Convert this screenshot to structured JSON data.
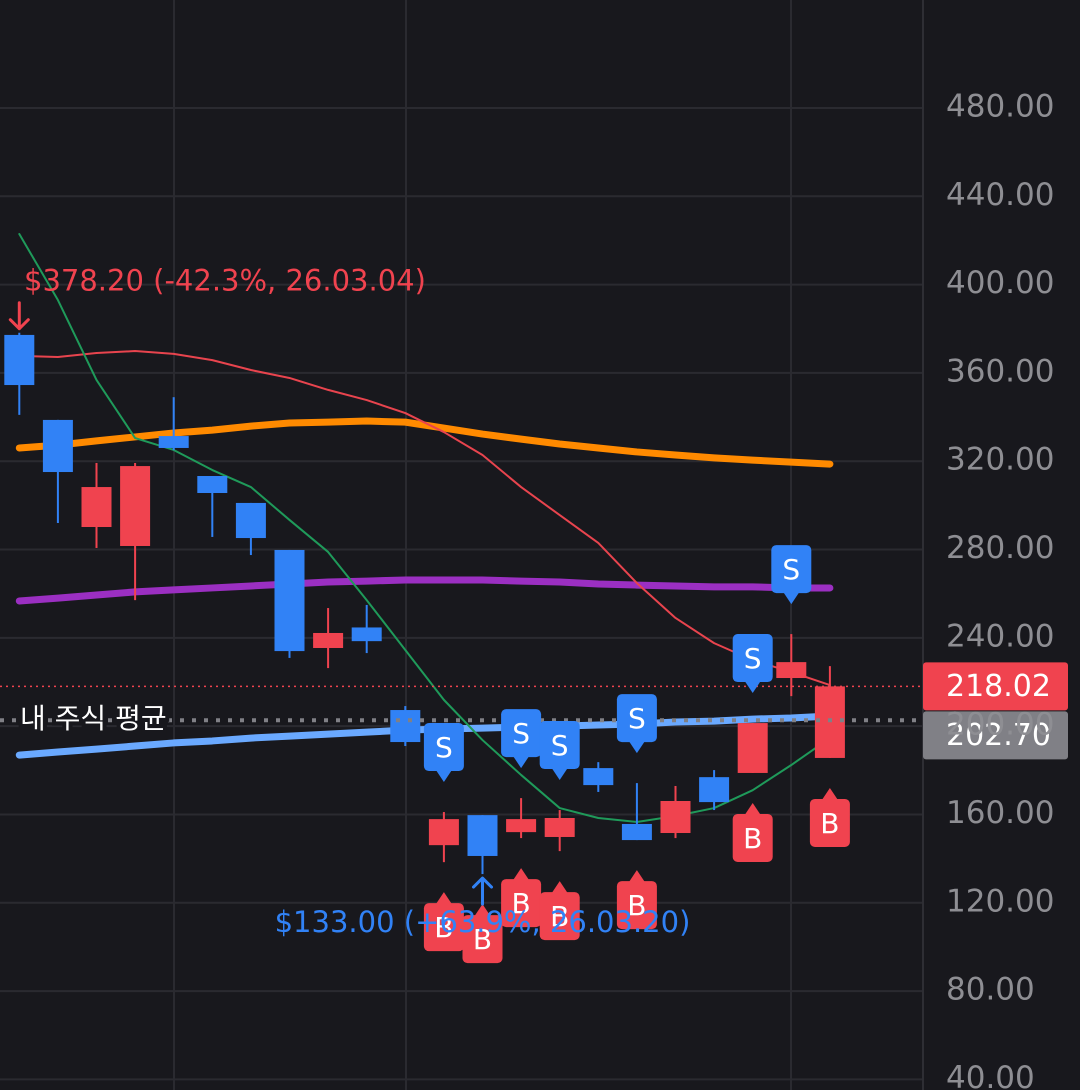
{
  "chart_data": {
    "type": "candlestick",
    "categories": [
      null,
      null,
      null,
      null,
      null,
      null,
      null,
      null,
      null,
      null,
      null,
      null,
      null,
      null,
      null,
      null,
      null,
      null,
      null,
      null,
      null,
      null
    ],
    "open": [
      377.2,
      338.7,
      290.2,
      281.6,
      331.4,
      313.3,
      301.1,
      279.8,
      235.4,
      244.7,
      207.3,
      146.1,
      159.7,
      152,
      149.8,
      181,
      155.7,
      151.6,
      176.9,
      178.8,
      221.8,
      185.6
    ],
    "high": [
      378.2,
      338.7,
      319.2,
      319.2,
      349,
      313.3,
      301.1,
      279.8,
      253.5,
      254.9,
      209.1,
      161.1,
      159.7,
      167.4,
      162,
      183.7,
      174.2,
      172.9,
      180.1,
      201.4,
      241.7,
      227.2
    ],
    "low": [
      341,
      292,
      280.7,
      257.1,
      325,
      285.7,
      277.5,
      230.9,
      226.3,
      233.1,
      191,
      138.4,
      133,
      149.3,
      143.4,
      170.2,
      148.4,
      149.3,
      162,
      178.8,
      213.6,
      185.6
    ],
    "close": [
      354.5,
      315.1,
      308.3,
      317.8,
      326,
      305.6,
      285.2,
      234,
      242.2,
      238.5,
      192.8,
      157.9,
      141.2,
      157.9,
      158.4,
      173.3,
      148.4,
      166.1,
      165.6,
      201.4,
      229,
      218.02
    ],
    "up_color": "#f0434f",
    "down_color": "#3182f6",
    "lines": [
      {
        "color": "#ff8a00",
        "width": 7,
        "values": [
          326,
          327.3,
          329.2,
          331,
          332.8,
          334.1,
          335.9,
          337.3,
          337.7,
          338.2,
          337.7,
          335,
          332.3,
          330,
          327.8,
          326,
          324.2,
          322.8,
          321.5,
          320.5,
          319.6,
          318.7
        ]
      },
      {
        "color": "#9b2fc2",
        "width": 7,
        "values": [
          256.7,
          258,
          259.4,
          260.8,
          261.7,
          262.6,
          263.5,
          264.4,
          265.3,
          265.7,
          266.2,
          266.2,
          266.2,
          265.7,
          265.3,
          264.4,
          263.9,
          263.5,
          263.1,
          263.1,
          262.6,
          262.6
        ]
      },
      {
        "color": "#6aa9ff",
        "width": 7,
        "values": [
          186.9,
          188.3,
          189.6,
          191,
          192.4,
          193.3,
          194.6,
          195.5,
          196.4,
          197.3,
          198.2,
          198.7,
          199.1,
          199.6,
          200,
          200.5,
          201,
          201.9,
          202.3,
          203.2,
          203.7,
          204.6
        ]
      },
      {
        "color": "#e8444e",
        "width": 2,
        "values": [
          367.7,
          367.2,
          369,
          369.9,
          368.6,
          365.8,
          361.3,
          357.7,
          352.3,
          347.7,
          341.8,
          333.2,
          322.8,
          308.3,
          295.6,
          283,
          264.8,
          249,
          237.6,
          229.9,
          224.5,
          218.6
        ]
      },
      {
        "color": "#1f9a5a",
        "width": 2,
        "values": [
          422.9,
          393,
          356.8,
          330.5,
          325.1,
          316,
          308.3,
          293.4,
          278.9,
          257.1,
          234.5,
          211.9,
          193.7,
          177.9,
          162.9,
          158.4,
          156.6,
          159.3,
          162.9,
          171,
          182.4,
          194.6
        ]
      }
    ],
    "ylim": [
      35.2,
      528.9
    ],
    "yticks": [
      {
        "value": 40,
        "label": "40.00"
      },
      {
        "value": 80,
        "label": "80.00"
      },
      {
        "value": 120,
        "label": "120.00"
      },
      {
        "value": 160,
        "label": "160.00"
      },
      {
        "value": 200,
        "label": "200.00"
      },
      {
        "value": 240,
        "label": "240.00"
      },
      {
        "value": 280,
        "label": "280.00"
      },
      {
        "value": 320,
        "label": "320.00"
      },
      {
        "value": 360,
        "label": "360.00"
      },
      {
        "value": 400,
        "label": "400.00"
      },
      {
        "value": 440,
        "label": "440.00"
      },
      {
        "value": 480,
        "label": "480.00"
      }
    ],
    "grid": true,
    "signals": {
      "sell": {
        "label": "S",
        "color": "#3182f6",
        "at": [
          11,
          13,
          14,
          16,
          19,
          20
        ]
      },
      "buy": {
        "label": "B",
        "color": "#f0434f",
        "at": [
          11,
          12,
          13,
          14,
          16,
          19,
          21
        ]
      }
    },
    "annotations": [
      {
        "text": "$378.20 (-42.3%, 26.03.04)",
        "index": 0,
        "at": "high",
        "color": "#f0434f"
      },
      {
        "text": "$133.00 (+63.9%, 26.03.20)",
        "index": 12,
        "at": "low",
        "color": "#3182f6"
      }
    ],
    "price_lines": [
      {
        "value": 218.02,
        "label": "218.02",
        "color": "#f0434f",
        "style": "thin"
      },
      {
        "value": 202.7,
        "label": "202.70",
        "color": "#808086",
        "style": "thick",
        "title": "내 주식 평균"
      }
    ]
  }
}
